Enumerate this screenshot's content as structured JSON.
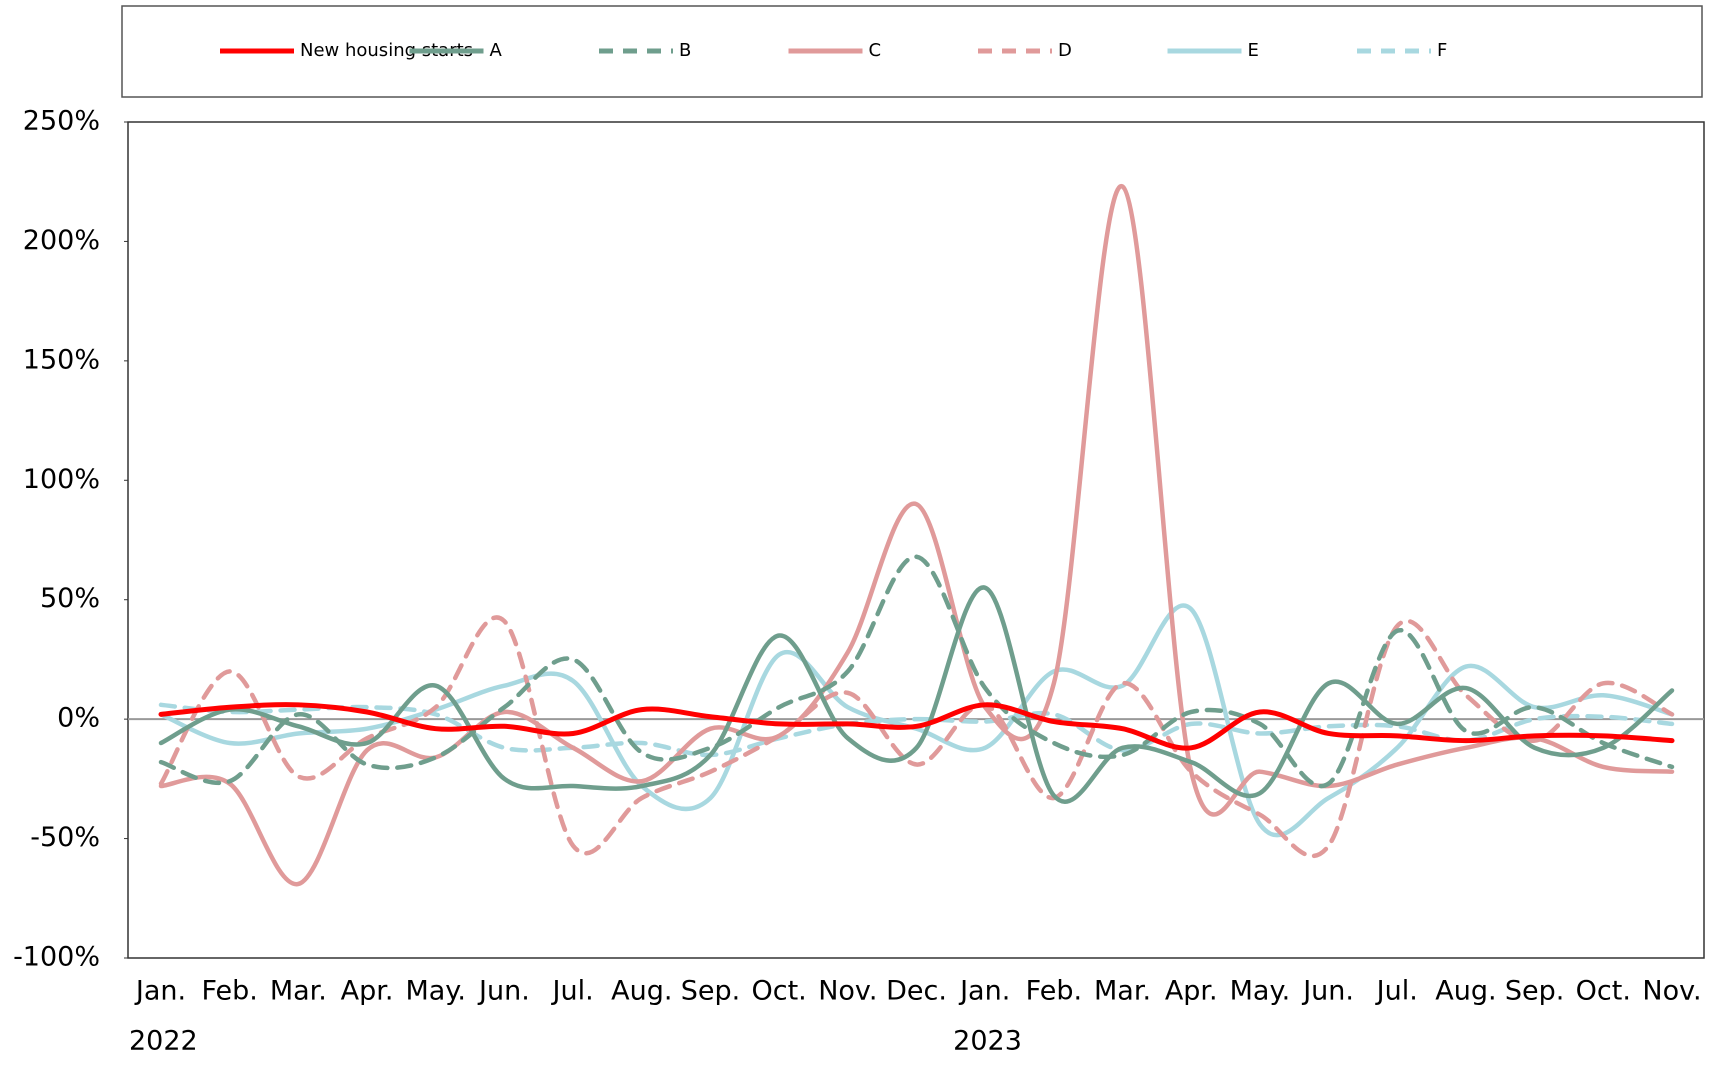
{
  "chart_data": {
    "type": "line",
    "categories": [
      "Jan.",
      "Feb.",
      "Mar.",
      "Apr.",
      "May.",
      "Jun.",
      "Jul.",
      "Aug.",
      "Sep.",
      "Oct.",
      "Nov.",
      "Dec.",
      "Jan.",
      "Feb.",
      "Mar.",
      "Apr.",
      "May.",
      "Jun.",
      "Jul.",
      "Aug.",
      "Sep.",
      "Oct.",
      "Nov."
    ],
    "year_groups": [
      {
        "label": "2022",
        "start": 0
      },
      {
        "label": "2023",
        "start": 12
      }
    ],
    "series": [
      {
        "name": "New housing starts",
        "color": "#ff0000",
        "dashed": false,
        "values": [
          2,
          5,
          6,
          3,
          -4,
          -3,
          -6,
          4,
          1,
          -2,
          -2,
          -3,
          6,
          -1,
          -4,
          -12,
          3,
          -6,
          -7,
          -9,
          -7,
          -7,
          -9
        ]
      },
      {
        "name": "A",
        "color": "#6f9e8d",
        "dashed": false,
        "values": [
          -10,
          4,
          -3,
          -10,
          14,
          -25,
          -28,
          -28,
          -15,
          35,
          -8,
          -12,
          55,
          -32,
          -12,
          -18,
          -31,
          15,
          -2,
          13,
          -12,
          -12,
          12
        ]
      },
      {
        "name": "B",
        "color": "#6f9e8d",
        "dashed": true,
        "values": [
          -18,
          -26,
          2,
          -19,
          -16,
          5,
          25,
          -14,
          -12,
          5,
          20,
          68,
          13,
          -10,
          -15,
          3,
          -2,
          -27,
          37,
          -5,
          5,
          -10,
          -20
        ]
      },
      {
        "name": "C",
        "color": "#e09a9a",
        "dashed": false,
        "values": [
          -28,
          -27,
          -69,
          -13,
          -16,
          3,
          -12,
          -26,
          -4,
          -7,
          28,
          90,
          5,
          15,
          223,
          -22,
          -22,
          -28,
          -19,
          -12,
          -8,
          -20,
          -22
        ]
      },
      {
        "name": "D",
        "color": "#e09a9a",
        "dashed": true,
        "values": [
          -27,
          20,
          -24,
          -8,
          5,
          41,
          -53,
          -33,
          -22,
          -7,
          11,
          -19,
          6,
          -33,
          15,
          -22,
          -40,
          -53,
          39,
          10,
          -9,
          15,
          2
        ]
      },
      {
        "name": "E",
        "color": "#a8d8e0",
        "dashed": false,
        "values": [
          2,
          -10,
          -6,
          -4,
          4,
          14,
          16,
          -28,
          -33,
          27,
          5,
          -4,
          -12,
          20,
          14,
          46,
          -44,
          -33,
          -12,
          22,
          5,
          10,
          2
        ]
      },
      {
        "name": "F",
        "color": "#a8d8e0",
        "dashed": true,
        "values": [
          6,
          3,
          4,
          5,
          2,
          -12,
          -12,
          -10,
          -15,
          -8,
          -2,
          0,
          -1,
          2,
          -13,
          -2,
          -6,
          -3,
          -3,
          -9,
          0,
          1,
          -2
        ]
      }
    ],
    "ylim": [
      -100,
      250
    ],
    "yticks": [
      {
        "value": -100,
        "label": "-100%"
      },
      {
        "value": -50,
        "label": "-50%"
      },
      {
        "value": 0,
        "label": "0%"
      },
      {
        "value": 50,
        "label": "50%"
      },
      {
        "value": 100,
        "label": "100%"
      },
      {
        "value": 150,
        "label": "150%"
      },
      {
        "value": 200,
        "label": "200%"
      },
      {
        "value": 250,
        "label": "250%"
      }
    ],
    "zero_line": true,
    "legend": "top"
  }
}
